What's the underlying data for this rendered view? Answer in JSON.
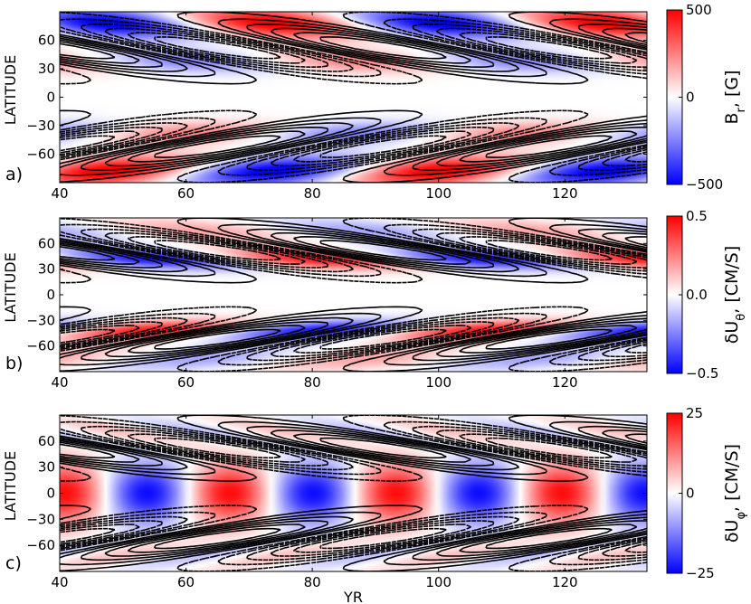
{
  "chart_data": [
    {
      "type": "heatmap",
      "panel_label": "a)",
      "ylabel": "LATITUDE",
      "xlabel": "",
      "xlim": [
        40,
        133
      ],
      "ylim": [
        -90,
        90
      ],
      "x_ticks": [
        "40",
        "60",
        "80",
        "100",
        "120"
      ],
      "y_ticks": [
        "60",
        "30",
        "0",
        "−30",
        "−60"
      ],
      "colorbar": {
        "label_main": "B",
        "label_sub": "r",
        "label_rest": ", [G]",
        "ticks": [
          "500",
          "0",
          "−500"
        ],
        "range": [
          -500,
          500
        ]
      },
      "field": "Br",
      "cycle_period_yr": 52.5,
      "overlay": "solid/dashed contours of toroidal field (positive solid, negative dashed)"
    },
    {
      "type": "heatmap",
      "panel_label": "b)",
      "ylabel": "LATITUDE",
      "xlabel": "",
      "xlim": [
        40,
        133
      ],
      "ylim": [
        -90,
        90
      ],
      "x_ticks": [
        "40",
        "60",
        "80",
        "100",
        "120"
      ],
      "y_ticks": [
        "60",
        "30",
        "0",
        "−30",
        "−60"
      ],
      "colorbar": {
        "label_main": "δU",
        "label_sub": "θ",
        "label_rest": ", [CM/S]",
        "ticks": [
          "0.5",
          "0.0",
          "−0.5"
        ],
        "range": [
          -0.5,
          0.5
        ]
      },
      "field": "dU_theta",
      "cycle_period_yr": 52.5,
      "overlay": "solid/dashed contours of toroidal field"
    },
    {
      "type": "heatmap",
      "panel_label": "c)",
      "ylabel": "LATITUDE",
      "xlabel": "YR",
      "xlim": [
        40,
        133
      ],
      "ylim": [
        -90,
        90
      ],
      "x_ticks": [
        "40",
        "60",
        "80",
        "100",
        "120"
      ],
      "y_ticks": [
        "60",
        "30",
        "0",
        "−30",
        "−60"
      ],
      "colorbar": {
        "label_main": "δU",
        "label_sub": "φ",
        "label_rest": ", [CM/S]",
        "ticks": [
          "25",
          "0",
          "−25"
        ],
        "range": [
          -25,
          25
        ]
      },
      "field": "dU_phi",
      "cycle_period_yr": 52.5,
      "overlay": "solid/dashed contours of toroidal field"
    }
  ],
  "colors": {
    "positive": "#ff0000",
    "negative": "#0000ff",
    "zero": "#ffffff",
    "contour": "#000000"
  }
}
